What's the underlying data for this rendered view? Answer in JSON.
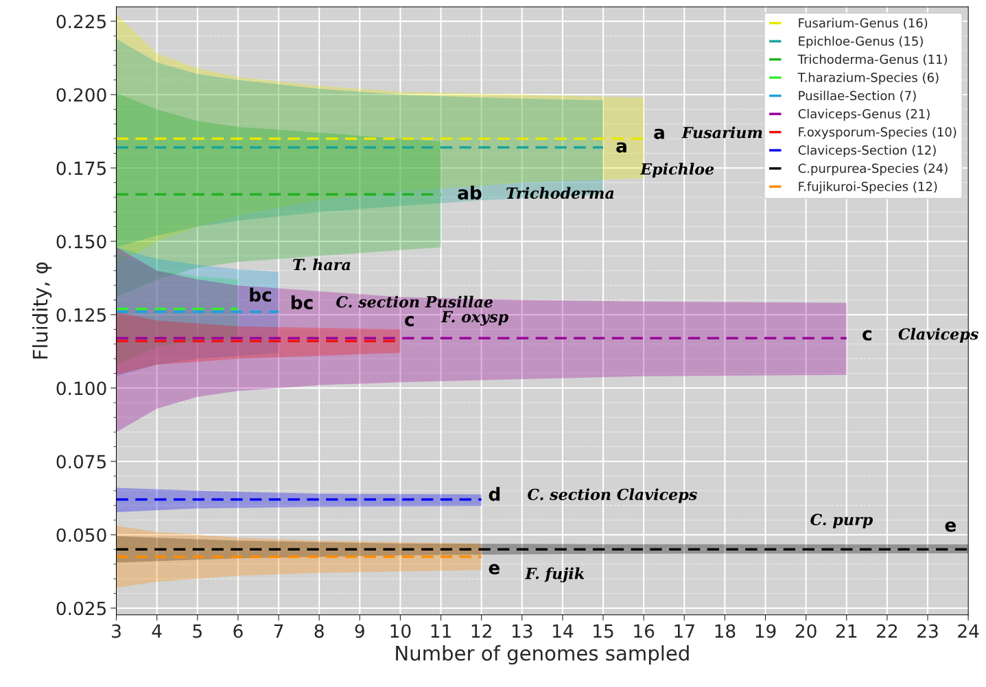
{
  "chart_data": {
    "type": "line",
    "xlabel": "Number of genomes sampled",
    "ylabel": "Fluidity, φ",
    "xlim": [
      3,
      24
    ],
    "ylim": [
      0.0227,
      0.2299
    ],
    "xticks": [
      3,
      4,
      5,
      6,
      7,
      8,
      9,
      10,
      11,
      12,
      13,
      14,
      15,
      16,
      17,
      18,
      19,
      20,
      21,
      22,
      23,
      24
    ],
    "yticks": [
      {
        "value": 0.025,
        "label": "0.025"
      },
      {
        "value": 0.05,
        "label": "0.050"
      },
      {
        "value": 0.075,
        "label": "0.075"
      },
      {
        "value": 0.1,
        "label": "0.100"
      },
      {
        "value": 0.125,
        "label": "0.125"
      },
      {
        "value": 0.15,
        "label": "0.150"
      },
      {
        "value": 0.175,
        "label": "0.175"
      },
      {
        "value": 0.2,
        "label": "0.200"
      },
      {
        "value": 0.225,
        "label": "0.225"
      }
    ],
    "grid": true,
    "legend": "top right",
    "line_style": "dashed",
    "series": [
      {
        "name": "Fusarium-Genus (16)",
        "color": "#e8e800",
        "x": [
          3,
          4,
          5,
          6,
          8,
          10,
          13,
          16
        ],
        "values": [
          0.185,
          0.185,
          0.185,
          0.185,
          0.185,
          0.185,
          0.185,
          0.185
        ],
        "upper": [
          0.2275,
          0.214,
          0.209,
          0.206,
          0.203,
          0.201,
          0.2,
          0.199
        ],
        "lower": [
          0.142,
          0.15,
          0.155,
          0.159,
          0.164,
          0.167,
          0.17,
          0.1715
        ]
      },
      {
        "name": "Epichloe-Genus (15)",
        "color": "#1aa39a",
        "x": [
          3,
          4,
          5,
          6,
          8,
          10,
          12,
          15
        ],
        "values": [
          0.182,
          0.182,
          0.182,
          0.182,
          0.182,
          0.182,
          0.182,
          0.182
        ],
        "upper": [
          0.219,
          0.211,
          0.207,
          0.205,
          0.202,
          0.2,
          0.199,
          0.198
        ],
        "lower": [
          0.148,
          0.152,
          0.155,
          0.157,
          0.16,
          0.162,
          0.164,
          0.166
        ]
      },
      {
        "name": "Trichoderma-Genus (11)",
        "color": "#22b022",
        "x": [
          3,
          4,
          5,
          6,
          8,
          10,
          11
        ],
        "values": [
          0.166,
          0.166,
          0.166,
          0.166,
          0.166,
          0.166,
          0.166
        ],
        "upper": [
          0.2005,
          0.195,
          0.191,
          0.189,
          0.187,
          0.185,
          0.184
        ],
        "lower": [
          0.131,
          0.137,
          0.141,
          0.143,
          0.145,
          0.147,
          0.148
        ]
      },
      {
        "name": "T.harazium-Species (6)",
        "color": "#33ee33",
        "x": [
          3,
          4,
          5,
          6
        ],
        "values": [
          0.127,
          0.127,
          0.127,
          0.127
        ],
        "upper": [
          0.146,
          0.14,
          0.138,
          0.137
        ],
        "lower": [
          0.108,
          0.114,
          0.116,
          0.117
        ]
      },
      {
        "name": "Pusillae-Section (7)",
        "color": "#1f9fdf",
        "x": [
          3,
          4,
          5,
          6,
          7
        ],
        "values": [
          0.126,
          0.126,
          0.126,
          0.126,
          0.126
        ],
        "upper": [
          0.148,
          0.144,
          0.142,
          0.1405,
          0.1396
        ],
        "lower": [
          0.104,
          0.108,
          0.11,
          0.111,
          0.112
        ]
      },
      {
        "name": "Claviceps-Genus (21)",
        "color": "#990099",
        "x": [
          3,
          4,
          5,
          6,
          8,
          10,
          13,
          16,
          21
        ],
        "values": [
          0.117,
          0.117,
          0.117,
          0.117,
          0.117,
          0.117,
          0.117,
          0.117,
          0.117
        ],
        "upper": [
          0.148,
          0.14,
          0.137,
          0.135,
          0.133,
          0.131,
          0.13,
          0.1295,
          0.129
        ],
        "lower": [
          0.085,
          0.093,
          0.097,
          0.099,
          0.101,
          0.102,
          0.103,
          0.104,
          0.1045
        ]
      },
      {
        "name": "F.oxysporum-Species (10)",
        "color": "#ee1111",
        "x": [
          3,
          4,
          6,
          8,
          10
        ],
        "values": [
          0.116,
          0.116,
          0.116,
          0.116,
          0.116
        ],
        "upper": [
          0.126,
          0.123,
          0.121,
          0.1205,
          0.12
        ],
        "lower": [
          0.1045,
          0.108,
          0.11,
          0.111,
          0.112
        ]
      },
      {
        "name": "Claviceps-Section (12)",
        "color": "#0000ee",
        "x": [
          3,
          5,
          8,
          12
        ],
        "values": [
          0.062,
          0.062,
          0.062,
          0.062
        ],
        "upper": [
          0.066,
          0.065,
          0.064,
          0.0638
        ],
        "lower": [
          0.0577,
          0.059,
          0.0595,
          0.0598
        ]
      },
      {
        "name": "C.purpurea-Species (24)",
        "color": "#000000",
        "x": [
          3,
          6,
          10,
          15,
          24
        ],
        "values": [
          0.045,
          0.045,
          0.045,
          0.045,
          0.045
        ],
        "upper": [
          0.0495,
          0.048,
          0.047,
          0.0468,
          0.0467
        ],
        "lower": [
          0.0405,
          0.042,
          0.043,
          0.0435,
          0.0437
        ]
      },
      {
        "name": "F.fujikuroi-Species (12)",
        "color": "#ff8c00",
        "x": [
          3,
          4,
          6,
          8,
          10,
          12
        ],
        "values": [
          0.0425,
          0.0425,
          0.0425,
          0.0425,
          0.0425,
          0.0425
        ],
        "upper": [
          0.053,
          0.051,
          0.049,
          0.048,
          0.0475,
          0.047
        ],
        "lower": [
          0.032,
          0.034,
          0.036,
          0.037,
          0.0375,
          0.038
        ]
      }
    ],
    "annotations": [
      "a",
      "Fusarium",
      "a",
      "Epichloe",
      "ab",
      "Trichoderma",
      "bc",
      "T. hara",
      "bc",
      "C. section Pusillae",
      "c",
      "Claviceps",
      "c",
      "F. oxysp",
      "d",
      "C. section Claviceps",
      "e",
      "C. purp",
      "e",
      "F. fujik"
    ]
  }
}
